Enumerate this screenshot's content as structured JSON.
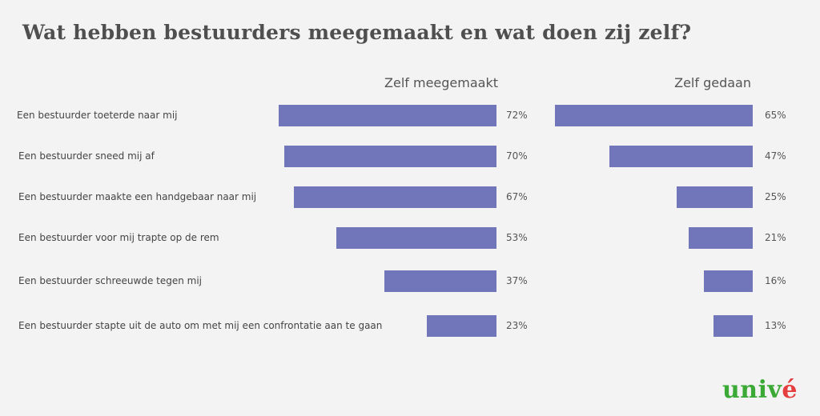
{
  "chart_data": {
    "type": "bar",
    "orientation": "horizontal",
    "title": "Wat hebben bestuurders meegemaakt en wat doen zij zelf?",
    "categories": [
      "Een bestuurder toeterde naar mij",
      "Een bestuurder sneed mij af",
      "Een bestuurder maakte een handgebaar  naar mij",
      "Een bestuurder voor mij trapte op de rem",
      "Een bestuurder schreeuwde tegen mij",
      "Een bestuurder stapte uit de auto om met mij een confrontatie aan te gaan"
    ],
    "series": [
      {
        "name": "Zelf meegemaakt",
        "values": [
          72,
          70,
          67,
          53,
          37,
          23
        ],
        "labels": [
          "72%",
          "70%",
          "67%",
          "53%",
          "37%",
          "23%"
        ]
      },
      {
        "name": "Zelf gedaan",
        "values": [
          65,
          47,
          25,
          21,
          16,
          13
        ],
        "labels": [
          "65%",
          "47%",
          "25%",
          "21%",
          "16%",
          "13%"
        ]
      }
    ],
    "unit": "%",
    "bar_color": "#7175b9",
    "grid": false,
    "legend": "none"
  },
  "logo": {
    "text_main": "univ",
    "text_accent": "é",
    "color_main": "#3aa935",
    "color_accent": "#e53e3e"
  }
}
